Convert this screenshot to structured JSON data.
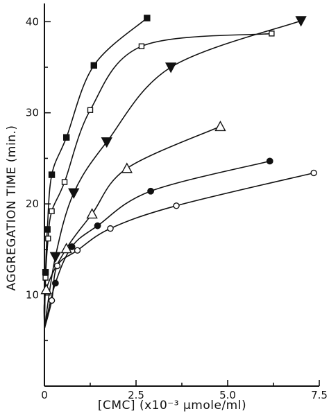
{
  "chart_data": {
    "type": "line",
    "title": "",
    "xlabel": "[CMC] (x10⁻³ μmole/ml)",
    "ylabel": "AGGREGATION TIME (min.)",
    "xlim": [
      0,
      7.5
    ],
    "ylim": [
      0,
      42
    ],
    "xticks": [
      0,
      2.5,
      5.0,
      7.5
    ],
    "xtick_labels": [
      "0",
      "2.5",
      "5.0",
      "7.5"
    ],
    "yticks": [
      10,
      20,
      30,
      40
    ],
    "ytick_labels": [
      "10",
      "20",
      "30",
      "40"
    ],
    "grid": false,
    "legend": "none",
    "y_intercept": 6.3,
    "series": [
      {
        "marker": "filled-square",
        "x": [
          0.03,
          0.08,
          0.2,
          0.6,
          1.35,
          2.8
        ],
        "y": [
          12.5,
          17.2,
          23.2,
          27.3,
          35.2,
          40.4
        ]
      },
      {
        "marker": "open-square",
        "x": [
          0.03,
          0.1,
          0.2,
          0.55,
          1.25,
          2.65,
          6.2
        ],
        "y": [
          11.9,
          16.2,
          19.2,
          22.4,
          30.3,
          37.3,
          38.7
        ]
      },
      {
        "marker": "filled-triangle-down",
        "x": [
          0.3,
          0.8,
          1.7,
          3.45,
          7.0
        ],
        "y": [
          14.2,
          21.2,
          26.8,
          35.0,
          40.1
        ]
      },
      {
        "marker": "open-triangle-up",
        "x": [
          0.05,
          0.6,
          1.3,
          2.25,
          4.8
        ],
        "y": [
          10.6,
          15.1,
          18.9,
          23.9,
          28.5
        ]
      },
      {
        "marker": "filled-circle",
        "x": [
          0.3,
          0.75,
          1.45,
          2.9,
          6.15
        ],
        "y": [
          11.3,
          15.3,
          17.6,
          21.4,
          24.7
        ]
      },
      {
        "marker": "open-circle",
        "x": [
          0.2,
          0.35,
          0.9,
          1.8,
          3.6,
          7.35
        ],
        "y": [
          9.4,
          13.2,
          14.9,
          17.3,
          19.8,
          23.4
        ]
      }
    ]
  }
}
